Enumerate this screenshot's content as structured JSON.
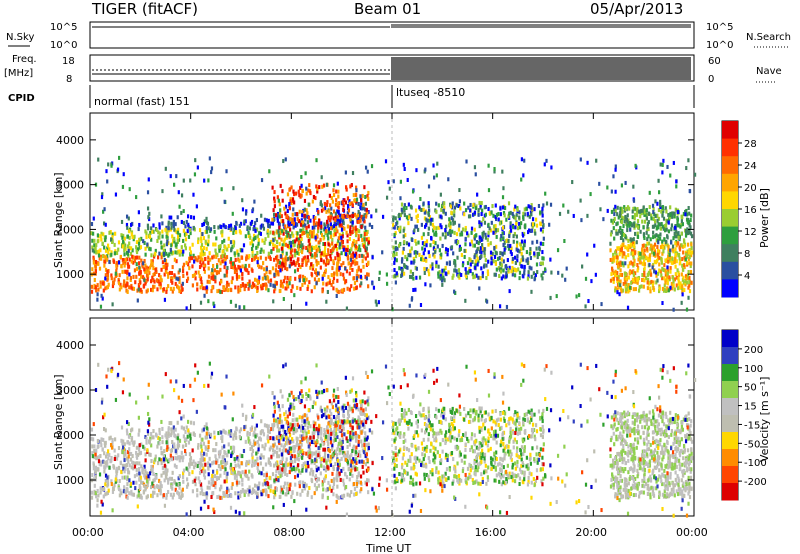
{
  "header": {
    "station": "TIGER (fitACF)",
    "beam": "Beam 01",
    "date": "05/Apr/2013"
  },
  "panel_labels": {
    "nsky": "N.Sky",
    "nsearch": "N.Search",
    "freq_top": "Freq.",
    "freq_unit": "[MHz]",
    "nave": "Nave",
    "cpid": "CPID",
    "nsky_ticks": [
      "10^5",
      "10^0"
    ],
    "nsearch_ticks": [
      "10^5",
      "10^0"
    ],
    "freq_ticks": [
      "18",
      "8"
    ],
    "nave_ticks": [
      "60",
      "0"
    ],
    "program_1": "normal (fast) 151",
    "program_2": "ltuseq -8510"
  },
  "colors": {
    "power": [
      "#0000ff",
      "#2a4fa0",
      "#3f7f5f",
      "#2e9e3e",
      "#9acd32",
      "#ffd700",
      "#ffa500",
      "#ff6a00",
      "#ff3000",
      "#e00000"
    ],
    "velocity": [
      "#0000c8",
      "#3040c0",
      "#2ca02c",
      "#90d050",
      "#c0c0c0",
      "#bebeb0",
      "#ffd700",
      "#ff8c00",
      "#ff4500",
      "#dd0000"
    ]
  },
  "chart_data": [
    {
      "type": "heatmap",
      "title": "Power",
      "ylabel": "Slant Range [km]",
      "xlabel": "",
      "x_ticks": [
        "00:00",
        "04:00",
        "08:00",
        "12:00",
        "16:00",
        "20:00",
        "00:00"
      ],
      "y_ticks": [
        1000,
        2000,
        3000,
        4000
      ],
      "ylim": [
        200,
        4600
      ],
      "colorbar_label": "Power [dB]",
      "colorbar_ticks": [
        4,
        8,
        12,
        16,
        20,
        24,
        28
      ],
      "clim": [
        0,
        30
      ]
    },
    {
      "type": "heatmap",
      "title": "Velocity",
      "ylabel": "Slant Range [km]",
      "xlabel": "Time UT",
      "x_ticks": [
        "00:00",
        "04:00",
        "08:00",
        "12:00",
        "16:00",
        "20:00",
        "00:00"
      ],
      "y_ticks": [
        1000,
        2000,
        3000,
        4000
      ],
      "ylim": [
        200,
        4600
      ],
      "colorbar_label": "Velocity [m s⁻¹]",
      "colorbar_ticks": [
        "200",
        "100",
        "50",
        "15",
        "-15",
        "-50",
        "-100",
        "-200"
      ]
    }
  ]
}
